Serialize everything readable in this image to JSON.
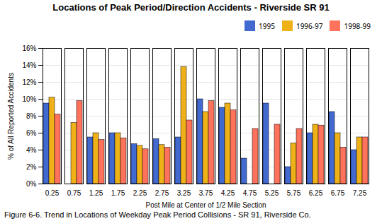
{
  "chart_data": {
    "type": "bar",
    "title": "Locations of Peak Period/Direction Accidents - Riverside SR 91",
    "xlabel": "Post Mile at Center of 1/2 Mile Section",
    "ylabel": "% of All Reported Accidents",
    "caption": "Figure 6-6. Trend in Locations of Weekday Peak Period Collisions - SR 91, Riverside Co.",
    "categories": [
      "0.25",
      "0.75",
      "1.25",
      "1.75",
      "2.25",
      "2.75",
      "3.25",
      "3.75",
      "4.25",
      "4.75",
      "5.25",
      "5.75",
      "6.25",
      "6.75",
      "7.25"
    ],
    "series": [
      {
        "name": "1995",
        "values": [
          9.5,
          0.0,
          5.5,
          6.0,
          4.7,
          5.3,
          5.5,
          10.0,
          9.0,
          3.0,
          9.5,
          2.0,
          6.0,
          8.5,
          4.0
        ]
      },
      {
        "name": "1996-97",
        "values": [
          10.2,
          7.2,
          6.0,
          6.0,
          4.5,
          4.6,
          13.8,
          8.5,
          9.5,
          0.0,
          0.0,
          4.8,
          7.0,
          6.0,
          5.5
        ]
      },
      {
        "name": "1998-99",
        "values": [
          8.2,
          9.8,
          5.2,
          5.4,
          4.1,
          4.3,
          7.5,
          9.8,
          8.7,
          6.5,
          7.0,
          6.5,
          6.9,
          4.3,
          5.5
        ]
      }
    ],
    "ylim": [
      0,
      16
    ],
    "yticks": [
      {
        "value": 0,
        "label": "0%"
      },
      {
        "value": 2,
        "label": "2%"
      },
      {
        "value": 4,
        "label": "4%"
      },
      {
        "value": 6,
        "label": "6%"
      },
      {
        "value": 8,
        "label": "8%"
      },
      {
        "value": 10,
        "label": "10%"
      },
      {
        "value": 12,
        "label": "12%"
      },
      {
        "value": 14,
        "label": "14%"
      },
      {
        "value": 16,
        "label": "16%"
      }
    ],
    "grid": true,
    "legend": "upper right"
  }
}
